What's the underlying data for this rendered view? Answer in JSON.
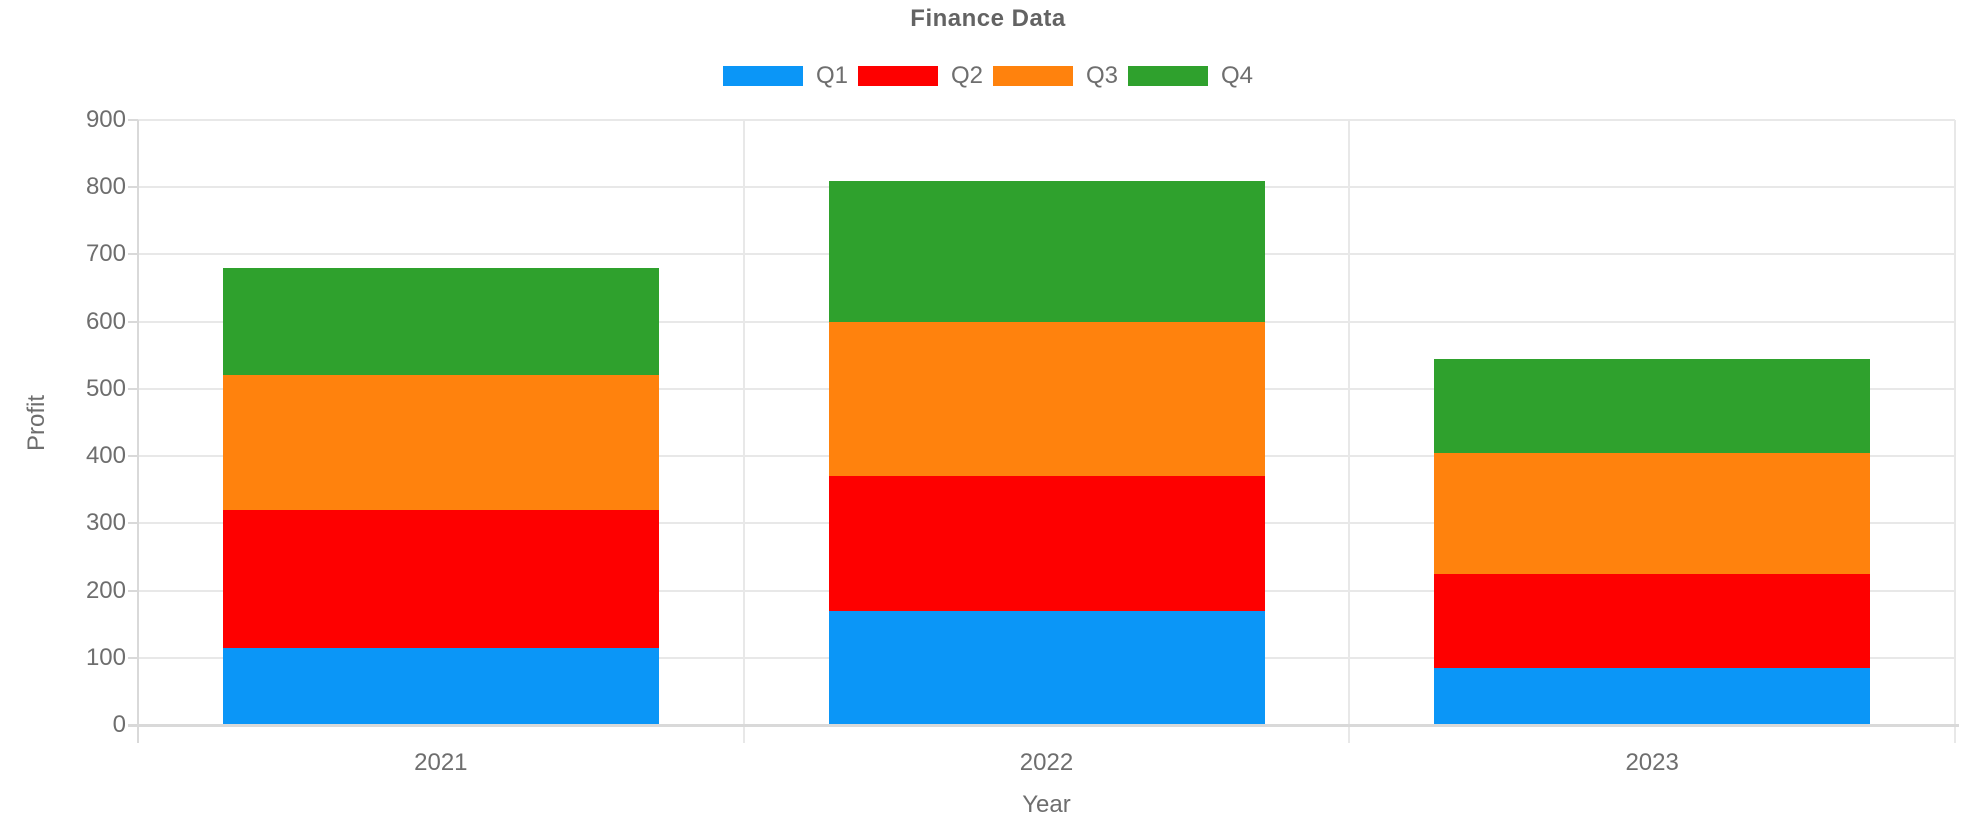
{
  "chart_data": {
    "type": "bar",
    "stacked": true,
    "title": "Finance Data",
    "xlabel": "Year",
    "ylabel": "Profit",
    "categories": [
      "2021",
      "2022",
      "2023"
    ],
    "series": [
      {
        "name": "Q1",
        "color": "#0b96f7",
        "values": [
          115,
          170,
          85
        ]
      },
      {
        "name": "Q2",
        "color": "#fe0000",
        "values": [
          205,
          200,
          140
        ]
      },
      {
        "name": "Q3",
        "color": "#ff820d",
        "values": [
          200,
          230,
          180
        ]
      },
      {
        "name": "Q4",
        "color": "#2fa12d",
        "values": [
          160,
          210,
          140
        ]
      }
    ],
    "stack_totals": [
      680,
      810,
      545
    ],
    "ylim": [
      0,
      900
    ],
    "yticks": [
      0,
      100,
      200,
      300,
      400,
      500,
      600,
      700,
      800,
      900
    ],
    "grid": true,
    "legend_position": "top",
    "legend_labels": [
      "Q1",
      "Q2",
      "Q3",
      "Q4"
    ]
  },
  "colors": {
    "grid": "#e8e8e8",
    "axis": "#d9d9d9",
    "tick_text": "#6e6e6e",
    "title_text": "#636363"
  }
}
